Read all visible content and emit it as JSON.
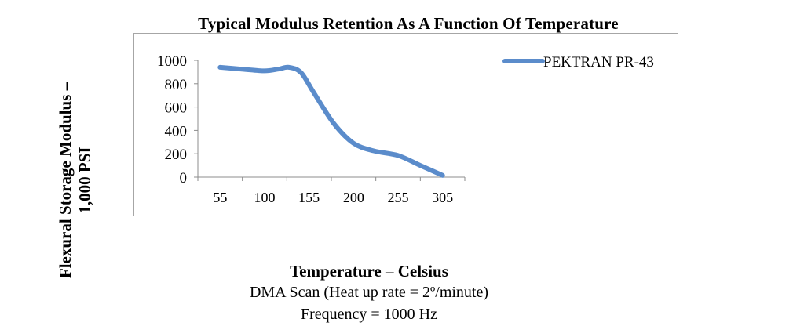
{
  "chart_data": {
    "type": "line",
    "title": "Typical Modulus Retention As A Function Of Temperature",
    "xlabel": "Temperature – Celsius",
    "ylabel_line1": "Flexural Storage Modulus –",
    "ylabel_line2": "1,000 PSI",
    "categories": [
      "55",
      "100",
      "155",
      "200",
      "255",
      "305"
    ],
    "y_ticks": [
      "1000",
      "800",
      "600",
      "400",
      "200",
      "0"
    ],
    "ylim": [
      0,
      1000
    ],
    "series": [
      {
        "name": "PEKTRAN PR-43",
        "color": "#5b8ccb",
        "points": [
          {
            "x": 55,
            "y": 940
          },
          {
            "x": 77,
            "y": 925
          },
          {
            "x": 100,
            "y": 910
          },
          {
            "x": 117,
            "y": 925
          },
          {
            "x": 130,
            "y": 940
          },
          {
            "x": 145,
            "y": 895
          },
          {
            "x": 160,
            "y": 720
          },
          {
            "x": 180,
            "y": 460
          },
          {
            "x": 200,
            "y": 290
          },
          {
            "x": 225,
            "y": 225
          },
          {
            "x": 255,
            "y": 185
          },
          {
            "x": 280,
            "y": 100
          },
          {
            "x": 305,
            "y": 15
          }
        ]
      }
    ],
    "legend_position": "right",
    "grid": false
  },
  "notes": {
    "line1": "DMA Scan (Heat up rate = 2º/minute)",
    "line2": "Frequency = 1000 Hz"
  }
}
